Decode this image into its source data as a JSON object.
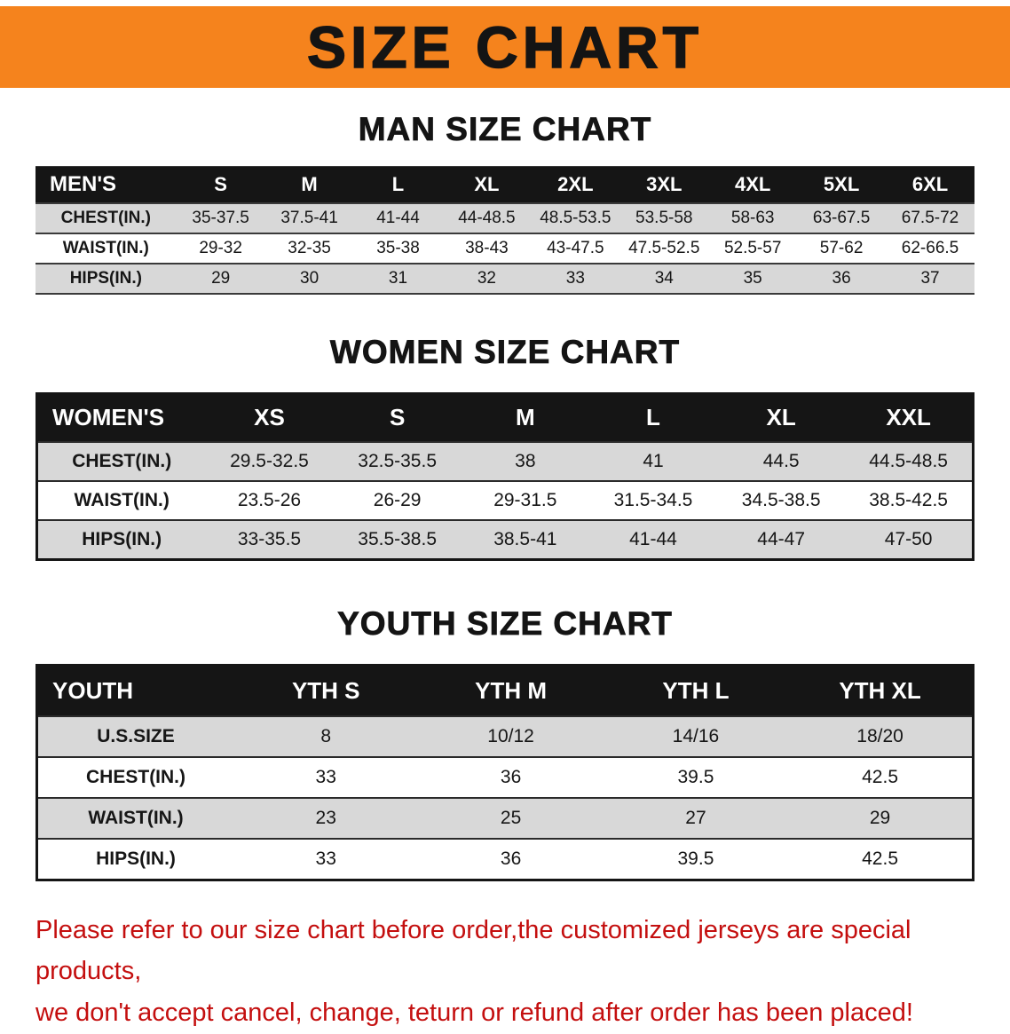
{
  "colors": {
    "orange": "#f5831d",
    "black": "#151515",
    "row-gray": "#d8d8d8",
    "red": "#c40f0f"
  },
  "banner": {
    "title": "SIZE CHART"
  },
  "sections": [
    {
      "heading": "MAN SIZE CHART",
      "table": {
        "header": [
          "MEN'S",
          "S",
          "M",
          "L",
          "XL",
          "2XL",
          "3XL",
          "4XL",
          "5XL",
          "6XL"
        ],
        "rows": [
          [
            "CHEST(IN.)",
            "35-37.5",
            "37.5-41",
            "41-44",
            "44-48.5",
            "48.5-53.5",
            "53.5-58",
            "58-63",
            "63-67.5",
            "67.5-72"
          ],
          [
            "WAIST(IN.)",
            "29-32",
            "32-35",
            "35-38",
            "38-43",
            "43-47.5",
            "47.5-52.5",
            "52.5-57",
            "57-62",
            "62-66.5"
          ],
          [
            "HIPS(IN.)",
            "29",
            "30",
            "31",
            "32",
            "33",
            "34",
            "35",
            "36",
            "37"
          ]
        ]
      }
    },
    {
      "heading": "WOMEN SIZE CHART",
      "table": {
        "header": [
          "WOMEN'S",
          "XS",
          "S",
          "M",
          "L",
          "XL",
          "XXL"
        ],
        "rows": [
          [
            "CHEST(IN.)",
            "29.5-32.5",
            "32.5-35.5",
            "38",
            "41",
            "44.5",
            "44.5-48.5"
          ],
          [
            "WAIST(IN.)",
            "23.5-26",
            "26-29",
            "29-31.5",
            "31.5-34.5",
            "34.5-38.5",
            "38.5-42.5"
          ],
          [
            "HIPS(IN.)",
            "33-35.5",
            "35.5-38.5",
            "38.5-41",
            "41-44",
            "44-47",
            "47-50"
          ]
        ]
      }
    },
    {
      "heading": "YOUTH SIZE CHART",
      "table": {
        "header": [
          "YOUTH",
          "YTH S",
          "YTH M",
          "YTH L",
          "YTH XL"
        ],
        "rows": [
          [
            "U.S.SIZE",
            "8",
            "10/12",
            "14/16",
            "18/20"
          ],
          [
            "CHEST(IN.)",
            "33",
            "36",
            "39.5",
            "42.5"
          ],
          [
            "WAIST(IN.)",
            "23",
            "25",
            "27",
            "29"
          ],
          [
            "HIPS(IN.)",
            "33",
            "36",
            "39.5",
            "42.5"
          ]
        ]
      }
    }
  ],
  "footer": {
    "line1": "Please refer to our size chart before order,the customized jerseys are special products,",
    "line2": "we don't accept cancel, change, teturn or refund after order has been placed!"
  }
}
